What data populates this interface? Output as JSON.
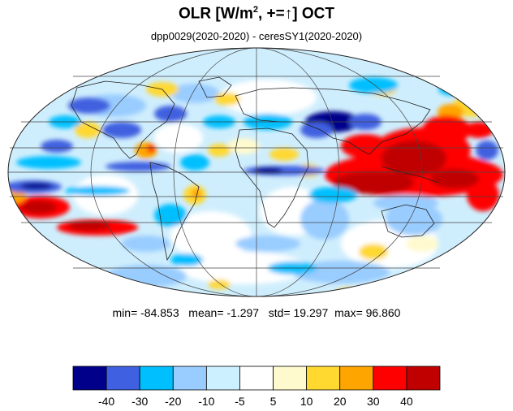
{
  "chart_data": {
    "type": "heatmap",
    "title_main": "OLR [W/m",
    "title_sup": "2",
    "title_rest": ", +=",
    "title_arrow": "↑",
    "title_end": "] OCT",
    "subtitle": "dpp0029(2020-2020) - ceresSY1(2020-2020)",
    "projection": "mollweide",
    "stats": {
      "min_label": "min=",
      "min": "-84.853",
      "mean_label": "mean=",
      "mean": "-1.297",
      "std_label": "std=",
      "std": "19.297",
      "max_label": "max=",
      "max": "96.860"
    },
    "levels": [
      "-40",
      "-30",
      "-20",
      "-10",
      "-5",
      "5",
      "10",
      "20",
      "30",
      "40"
    ],
    "colors": [
      "#00008b",
      "#3f60e0",
      "#00bfff",
      "#99ccff",
      "#ccf0ff",
      "#ffffff",
      "#fffacd",
      "#ffd830",
      "#ffa500",
      "#ff0000",
      "#c00000"
    ]
  }
}
